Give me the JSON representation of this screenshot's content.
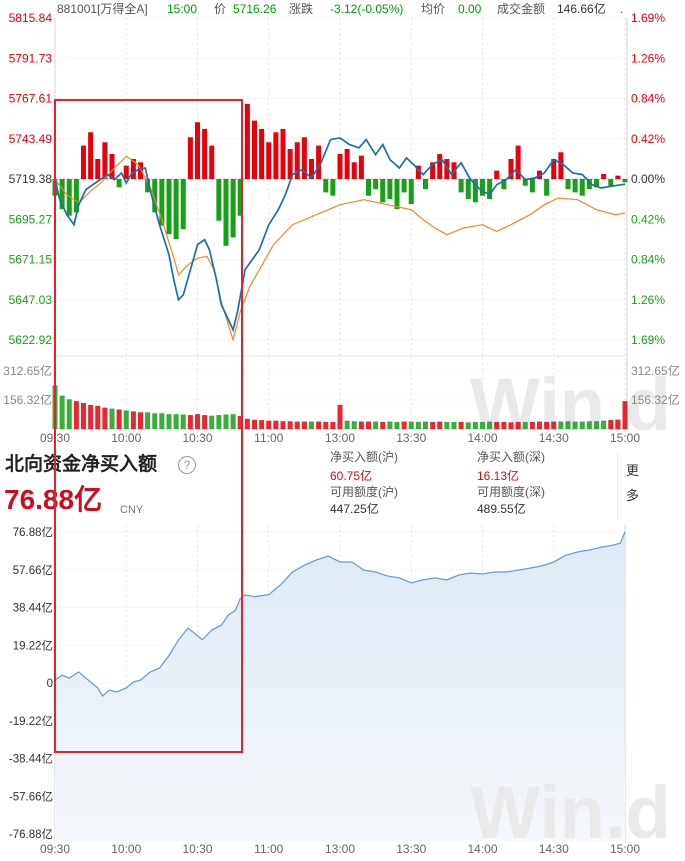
{
  "header": {
    "code": "881001[万得全A]",
    "time": "15:00",
    "price_label": "价",
    "price": "5716.26",
    "change_label": "涨跌",
    "change": "-3.12(-0.05%)",
    "avg_label": "均价",
    "avg": "0.00",
    "amount_label": "成交金额",
    "amount": "146.66亿",
    "trailing": "."
  },
  "colors": {
    "up": "#e8000b",
    "down": "#18a018",
    "neutral": "#333333",
    "header_green": "#00a000",
    "price_line": "#1d6fa8",
    "avg_line": "#f0882a",
    "flow_line": "#6a9fcd",
    "flow_fill_top": "#dde9f5",
    "flow_fill_bottom": "#f5f8fc",
    "highlight": "#e0232e"
  },
  "info": {
    "title": "北向资金净买入额",
    "help_icon": "?",
    "total": "76.88亿",
    "currency": "CNY",
    "sh_net_label": "净买入额(沪)",
    "sh_net": "60.75亿",
    "sh_quota_label": "可用额度(沪)",
    "sh_quota": "447.25亿",
    "sz_net_label": "净买入额(深)",
    "sz_net": "16.13亿",
    "sz_quota_label": "可用额度(深)",
    "sz_quota": "489.55亿",
    "more": "更多"
  },
  "watermark": "Win.d",
  "chart_data": [
    {
      "type": "line",
      "x_ticks": [
        "09:30",
        "10:00",
        "10:30",
        "11:00",
        "13:00",
        "13:30",
        "14:00",
        "14:30",
        "15:00"
      ],
      "y_ticks_left": [
        "5815.84",
        "5791.73",
        "5767.61",
        "5743.49",
        "5719.38",
        "5695.27",
        "5671.15",
        "5647.03",
        "5622.92"
      ],
      "y_ticks_right": [
        "1.69%",
        "1.26%",
        "0.84%",
        "0.42%",
        "0.00%",
        "0.42%",
        "0.84%",
        "1.26%",
        "1.69%"
      ],
      "ylim": [
        5622.92,
        5815.84
      ],
      "baseline": 5719.38,
      "x_range_minutes": [
        0,
        240
      ],
      "series": [
        {
          "values": [
            [
              0,
              5719
            ],
            [
              2,
              5707
            ],
            [
              5,
              5698
            ],
            [
              8,
              5692
            ],
            [
              10,
              5704
            ],
            [
              13,
              5713
            ],
            [
              16,
              5716
            ],
            [
              20,
              5720
            ],
            [
              22,
              5722
            ],
            [
              25,
              5719
            ],
            [
              28,
              5723
            ],
            [
              30,
              5717
            ],
            [
              32,
              5722
            ],
            [
              35,
              5725
            ],
            [
              38,
              5726
            ],
            [
              40,
              5713
            ],
            [
              44,
              5692
            ],
            [
              48,
              5674
            ],
            [
              50,
              5659
            ],
            [
              52,
              5647
            ],
            [
              54,
              5650
            ],
            [
              57,
              5665
            ],
            [
              60,
              5680
            ],
            [
              63,
              5683
            ],
            [
              65,
              5677
            ],
            [
              68,
              5659
            ],
            [
              70,
              5644
            ],
            [
              73,
              5635
            ],
            [
              75,
              5629
            ],
            [
              77,
              5641
            ],
            [
              80,
              5665
            ],
            [
              83,
              5671
            ],
            [
              86,
              5677
            ],
            [
              90,
              5692
            ],
            [
              94,
              5701
            ],
            [
              97,
              5710
            ],
            [
              100,
              5722
            ],
            [
              104,
              5725
            ],
            [
              108,
              5720
            ],
            [
              112,
              5729
            ],
            [
              116,
              5743
            ],
            [
              120,
              5744
            ],
            [
              124,
              5740
            ],
            [
              128,
              5738
            ],
            [
              131,
              5743
            ],
            [
              135,
              5734
            ],
            [
              138,
              5740
            ],
            [
              141,
              5731
            ],
            [
              145,
              5726
            ],
            [
              148,
              5732
            ],
            [
              151,
              5728
            ],
            [
              155,
              5722
            ],
            [
              159,
              5728
            ],
            [
              163,
              5731
            ],
            [
              167,
              5722
            ],
            [
              171,
              5729
            ],
            [
              175,
              5719
            ],
            [
              179,
              5713
            ],
            [
              183,
              5710
            ],
            [
              186,
              5716
            ],
            [
              190,
              5719
            ],
            [
              194,
              5725
            ],
            [
              198,
              5719
            ],
            [
              202,
              5720
            ],
            [
              206,
              5723
            ],
            [
              210,
              5731
            ],
            [
              214,
              5728
            ],
            [
              218,
              5723
            ],
            [
              222,
              5722
            ],
            [
              226,
              5716
            ],
            [
              230,
              5714
            ],
            [
              234,
              5715
            ],
            [
              240,
              5716.26
            ]
          ]
        },
        {
          "values": [
            [
              0,
              5719
            ],
            [
              5,
              5710
            ],
            [
              10,
              5705
            ],
            [
              15,
              5712
            ],
            [
              20,
              5718
            ],
            [
              25,
              5726
            ],
            [
              30,
              5733
            ],
            [
              35,
              5728
            ],
            [
              40,
              5715
            ],
            [
              45,
              5695
            ],
            [
              50,
              5672
            ],
            [
              52,
              5662
            ],
            [
              56,
              5668
            ],
            [
              60,
              5672
            ],
            [
              64,
              5673
            ],
            [
              67,
              5665
            ],
            [
              70,
              5646
            ],
            [
              73,
              5632
            ],
            [
              75,
              5623
            ],
            [
              78,
              5640
            ],
            [
              82,
              5655
            ],
            [
              86,
              5665
            ],
            [
              92,
              5680
            ],
            [
              100,
              5692
            ],
            [
              110,
              5698
            ],
            [
              120,
              5704
            ],
            [
              130,
              5707
            ],
            [
              140,
              5704
            ],
            [
              150,
              5701
            ],
            [
              155,
              5695
            ],
            [
              160,
              5690
            ],
            [
              165,
              5686
            ],
            [
              172,
              5690
            ],
            [
              180,
              5692
            ],
            [
              186,
              5688
            ],
            [
              192,
              5692
            ],
            [
              200,
              5698
            ],
            [
              206,
              5704
            ],
            [
              212,
              5708
            ],
            [
              220,
              5707
            ],
            [
              228,
              5701
            ],
            [
              236,
              5698
            ],
            [
              240,
              5699
            ]
          ]
        }
      ],
      "net_bars": {
        "step_minutes": 3,
        "values": [
          -10,
          -18,
          -22,
          -20,
          20,
          28,
          12,
          22,
          15,
          -5,
          8,
          12,
          10,
          -8,
          -20,
          -28,
          -33,
          -36,
          -30,
          25,
          34,
          30,
          20,
          -25,
          -40,
          -35,
          -22,
          45,
          35,
          30,
          22,
          28,
          30,
          18,
          22,
          25,
          12,
          20,
          -8,
          -10,
          15,
          18,
          10,
          14,
          -10,
          -6,
          -14,
          -12,
          -18,
          -8,
          -15,
          8,
          -6,
          10,
          15,
          12,
          10,
          -8,
          -12,
          -14,
          -10,
          -12,
          5,
          -6,
          12,
          20,
          -4,
          -8,
          5,
          -10,
          12,
          16,
          -6,
          -8,
          -10,
          -6,
          -5,
          3,
          -4,
          2,
          -2
        ]
      },
      "volume": {
        "y_ticks": [
          "312.65亿",
          "156.32亿"
        ],
        "ylim": [
          0,
          312.65
        ],
        "step_minutes": 3,
        "values": [
          235,
          180,
          160,
          150,
          140,
          130,
          125,
          115,
          110,
          105,
          100,
          95,
          90,
          90,
          85,
          85,
          80,
          80,
          78,
          75,
          80,
          75,
          72,
          75,
          78,
          80,
          70,
          55,
          50,
          48,
          45,
          45,
          42,
          42,
          40,
          40,
          40,
          40,
          38,
          38,
          130,
          45,
          42,
          40,
          40,
          40,
          38,
          40,
          38,
          40,
          40,
          38,
          40,
          38,
          40,
          38,
          38,
          38,
          36,
          38,
          38,
          40,
          38,
          38,
          36,
          38,
          38,
          38,
          40,
          38,
          40,
          40,
          42,
          40,
          40,
          42,
          42,
          45,
          48,
          50,
          150
        ]
      }
    },
    {
      "type": "area",
      "x_ticks": [
        "09:30",
        "10:00",
        "10:30",
        "11:00",
        "13:00",
        "13:30",
        "14:00",
        "14:30",
        "15:00"
      ],
      "y_ticks": [
        "76.88亿",
        "57.66亿",
        "38.44亿",
        "19.22亿",
        "0",
        "-19.22亿",
        "-38.44亿",
        "-57.66亿",
        "-76.88亿"
      ],
      "ylim": [
        -76.88,
        76.88
      ],
      "x_range_minutes": [
        0,
        240
      ],
      "series": [
        {
          "values": [
            [
              0,
              1.5
            ],
            [
              3,
              4
            ],
            [
              6,
              2.5
            ],
            [
              10,
              5.6
            ],
            [
              14,
              1.5
            ],
            [
              18,
              -2.5
            ],
            [
              20,
              -6.6
            ],
            [
              23,
              -3.6
            ],
            [
              26,
              -4.6
            ],
            [
              30,
              -2.5
            ],
            [
              33,
              0.5
            ],
            [
              36,
              1.5
            ],
            [
              40,
              5.6
            ],
            [
              44,
              7.6
            ],
            [
              48,
              14
            ],
            [
              52,
              21.9
            ],
            [
              56,
              28
            ],
            [
              58,
              26
            ],
            [
              62,
              22
            ],
            [
              66,
              27
            ],
            [
              70,
              29.5
            ],
            [
              73,
              34.6
            ],
            [
              76,
              37
            ],
            [
              78,
              43
            ],
            [
              80,
              44.8
            ],
            [
              84,
              44
            ],
            [
              90,
              45
            ],
            [
              95,
              50
            ],
            [
              100,
              56.5
            ],
            [
              105,
              60
            ],
            [
              110,
              62.6
            ],
            [
              115,
              64.6
            ],
            [
              120,
              61.6
            ],
            [
              125,
              61.6
            ],
            [
              130,
              57.5
            ],
            [
              135,
              56.5
            ],
            [
              140,
              54.5
            ],
            [
              145,
              53.5
            ],
            [
              150,
              51
            ],
            [
              155,
              52.5
            ],
            [
              160,
              53.5
            ],
            [
              165,
              52.5
            ],
            [
              170,
              55
            ],
            [
              175,
              56
            ],
            [
              180,
              55.5
            ],
            [
              185,
              56.5
            ],
            [
              190,
              56.5
            ],
            [
              195,
              57.5
            ],
            [
              200,
              58.5
            ],
            [
              205,
              59.6
            ],
            [
              210,
              61.6
            ],
            [
              215,
              65
            ],
            [
              220,
              66.7
            ],
            [
              225,
              67.7
            ],
            [
              230,
              69.2
            ],
            [
              235,
              70.2
            ],
            [
              238,
              71.2
            ],
            [
              240,
              76.88
            ]
          ]
        }
      ]
    }
  ]
}
